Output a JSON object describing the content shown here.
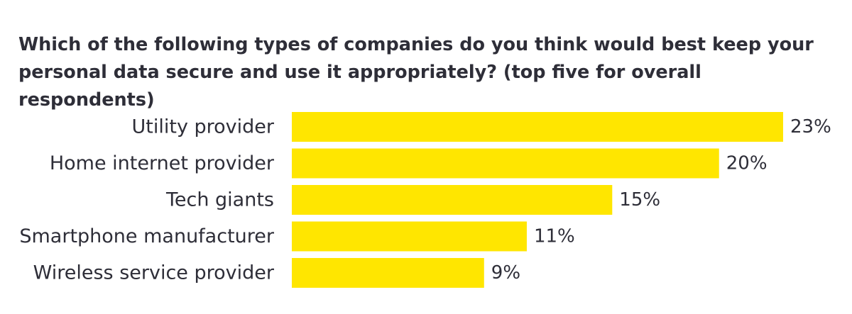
{
  "chart_data": {
    "type": "bar",
    "orientation": "horizontal",
    "title": "Which of the following types of companies do you think would best keep your personal data secure and use it appropriately? (top five for overall respondents)",
    "categories": [
      "Utility provider",
      "Home internet provider",
      "Tech giants",
      "Smartphone manufacturer",
      "Wireless service provider"
    ],
    "values": [
      23,
      20,
      15,
      11,
      9
    ],
    "value_labels": [
      "23%",
      "20%",
      "15%",
      "11%",
      "9%"
    ],
    "unit": "%",
    "xlim": [
      0,
      23
    ],
    "grid": false,
    "legend": "none",
    "colors": {
      "bar": "#ffe600",
      "text": "#2e2e38",
      "background": "#ffffff"
    }
  }
}
